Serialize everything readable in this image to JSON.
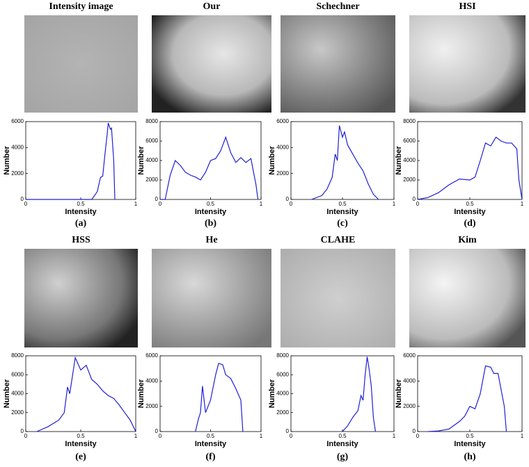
{
  "chart_data": [
    {
      "type": "line",
      "title": "Intensity image",
      "label": "(a)",
      "xlabel": "Intensity",
      "ylabel": "Number",
      "color": "#1f1fd6",
      "x": [
        0,
        0.6,
        0.65,
        0.68,
        0.7,
        0.72,
        0.74,
        0.75,
        0.77,
        0.78,
        0.8,
        0.81
      ],
      "values": [
        0,
        0,
        600,
        1700,
        1800,
        3500,
        5000,
        5900,
        5400,
        5500,
        3000,
        0
      ],
      "xlim": [
        0,
        1
      ],
      "xticks": [
        0,
        0.5,
        1
      ],
      "ylim": [
        0,
        6000
      ],
      "yticks": [
        0,
        2000,
        4000,
        6000
      ]
    },
    {
      "type": "line",
      "title": "Our",
      "label": "(b)",
      "xlabel": "Intensity",
      "ylabel": "Number",
      "color": "#1f1fd6",
      "x": [
        0,
        0.05,
        0.1,
        0.15,
        0.2,
        0.25,
        0.3,
        0.35,
        0.4,
        0.45,
        0.5,
        0.55,
        0.6,
        0.65,
        0.7,
        0.75,
        0.8,
        0.85,
        0.9,
        0.95,
        0.97
      ],
      "values": [
        0,
        0,
        2500,
        4000,
        3500,
        2800,
        2500,
        2300,
        2000,
        2800,
        4000,
        4200,
        5000,
        6400,
        4800,
        3800,
        4300,
        3800,
        4200,
        1500,
        0
      ],
      "xlim": [
        0,
        1
      ],
      "xticks": [
        0,
        0.5,
        1
      ],
      "ylim": [
        0,
        8000
      ],
      "yticks": [
        0,
        2000,
        4000,
        6000,
        8000
      ]
    },
    {
      "type": "line",
      "title": "Schechner",
      "label": "(c)",
      "xlabel": "Intensity",
      "ylabel": "Number",
      "color": "#1f1fd6",
      "x": [
        0.2,
        0.3,
        0.35,
        0.4,
        0.43,
        0.45,
        0.47,
        0.5,
        0.52,
        0.55,
        0.6,
        0.65,
        0.7,
        0.75,
        0.8,
        0.85
      ],
      "values": [
        0,
        300,
        800,
        1700,
        3500,
        3000,
        5700,
        4800,
        5200,
        4200,
        3500,
        2800,
        2200,
        1200,
        400,
        0
      ],
      "xlim": [
        0,
        1
      ],
      "xticks": [
        0,
        0.5,
        1
      ],
      "ylim": [
        0,
        6000
      ],
      "yticks": [
        0,
        2000,
        4000,
        6000
      ]
    },
    {
      "type": "line",
      "title": "HSI",
      "label": "(d)",
      "xlabel": "Intensity",
      "ylabel": "Number",
      "color": "#1f1fd6",
      "x": [
        0,
        0.1,
        0.2,
        0.3,
        0.4,
        0.5,
        0.55,
        0.6,
        0.65,
        0.7,
        0.75,
        0.8,
        0.85,
        0.9,
        0.95,
        0.97,
        1
      ],
      "values": [
        0,
        200,
        700,
        1500,
        2100,
        2000,
        2300,
        4000,
        5800,
        5500,
        6400,
        6000,
        5800,
        5800,
        5200,
        2000,
        0
      ],
      "xlim": [
        0,
        1
      ],
      "xticks": [
        0,
        0.5,
        1
      ],
      "ylim": [
        0,
        8000
      ],
      "yticks": [
        0,
        2000,
        4000,
        6000,
        8000
      ]
    },
    {
      "type": "line",
      "title": "HSS",
      "label": "(e)",
      "xlabel": "Intensity",
      "ylabel": "Number",
      "color": "#1f1fd6",
      "x": [
        0.1,
        0.2,
        0.3,
        0.35,
        0.38,
        0.4,
        0.45,
        0.5,
        0.55,
        0.6,
        0.65,
        0.7,
        0.75,
        0.8,
        0.85,
        0.9,
        0.95,
        1
      ],
      "values": [
        0,
        500,
        1200,
        2000,
        4700,
        4000,
        7800,
        6500,
        7000,
        5500,
        5000,
        4300,
        3800,
        3500,
        2800,
        2000,
        1200,
        0
      ],
      "xlim": [
        0,
        1
      ],
      "xticks": [
        0,
        0.5,
        1
      ],
      "ylim": [
        0,
        8000
      ],
      "yticks": [
        0,
        2000,
        4000,
        6000,
        8000
      ]
    },
    {
      "type": "line",
      "title": "He",
      "label": "(f)",
      "xlabel": "Intensity",
      "ylabel": "Number",
      "color": "#1f1fd6",
      "x": [
        0.35,
        0.38,
        0.4,
        0.42,
        0.45,
        0.5,
        0.55,
        0.58,
        0.62,
        0.65,
        0.7,
        0.75,
        0.8,
        0.82
      ],
      "values": [
        0,
        1000,
        1500,
        3600,
        1500,
        2500,
        4500,
        5400,
        5300,
        4500,
        4200,
        3400,
        2500,
        0
      ],
      "xlim": [
        0,
        1
      ],
      "xticks": [
        0,
        0.5,
        1
      ],
      "ylim": [
        0,
        6000
      ],
      "yticks": [
        0,
        2000,
        4000,
        6000
      ]
    },
    {
      "type": "line",
      "title": "CLAHE",
      "label": "(g)",
      "xlabel": "Intensity",
      "ylabel": "Number",
      "color": "#1f1fd6",
      "x": [
        0.5,
        0.55,
        0.6,
        0.65,
        0.68,
        0.7,
        0.72,
        0.74,
        0.76,
        0.78,
        0.8,
        0.82
      ],
      "values": [
        0,
        600,
        1500,
        2200,
        3800,
        3300,
        6000,
        7900,
        6500,
        4800,
        1500,
        0
      ],
      "xlim": [
        0,
        1
      ],
      "xticks": [
        0,
        0.5,
        1
      ],
      "ylim": [
        0,
        8000
      ],
      "yticks": [
        0,
        2000,
        4000,
        6000,
        8000
      ]
    },
    {
      "type": "line",
      "title": "Kim",
      "label": "(h)",
      "xlabel": "Intensity",
      "ylabel": "Number",
      "color": "#1f1fd6",
      "x": [
        0.1,
        0.2,
        0.3,
        0.4,
        0.45,
        0.5,
        0.55,
        0.6,
        0.65,
        0.7,
        0.73,
        0.77,
        0.8,
        0.83,
        0.85
      ],
      "values": [
        0,
        50,
        200,
        800,
        1200,
        2000,
        1800,
        3000,
        5200,
        5100,
        4600,
        4600,
        3300,
        2000,
        0
      ],
      "xlim": [
        0,
        1
      ],
      "xticks": [
        0,
        0.5,
        1
      ],
      "ylim": [
        0,
        6000
      ],
      "yticks": [
        0,
        2000,
        4000,
        6000
      ]
    }
  ]
}
